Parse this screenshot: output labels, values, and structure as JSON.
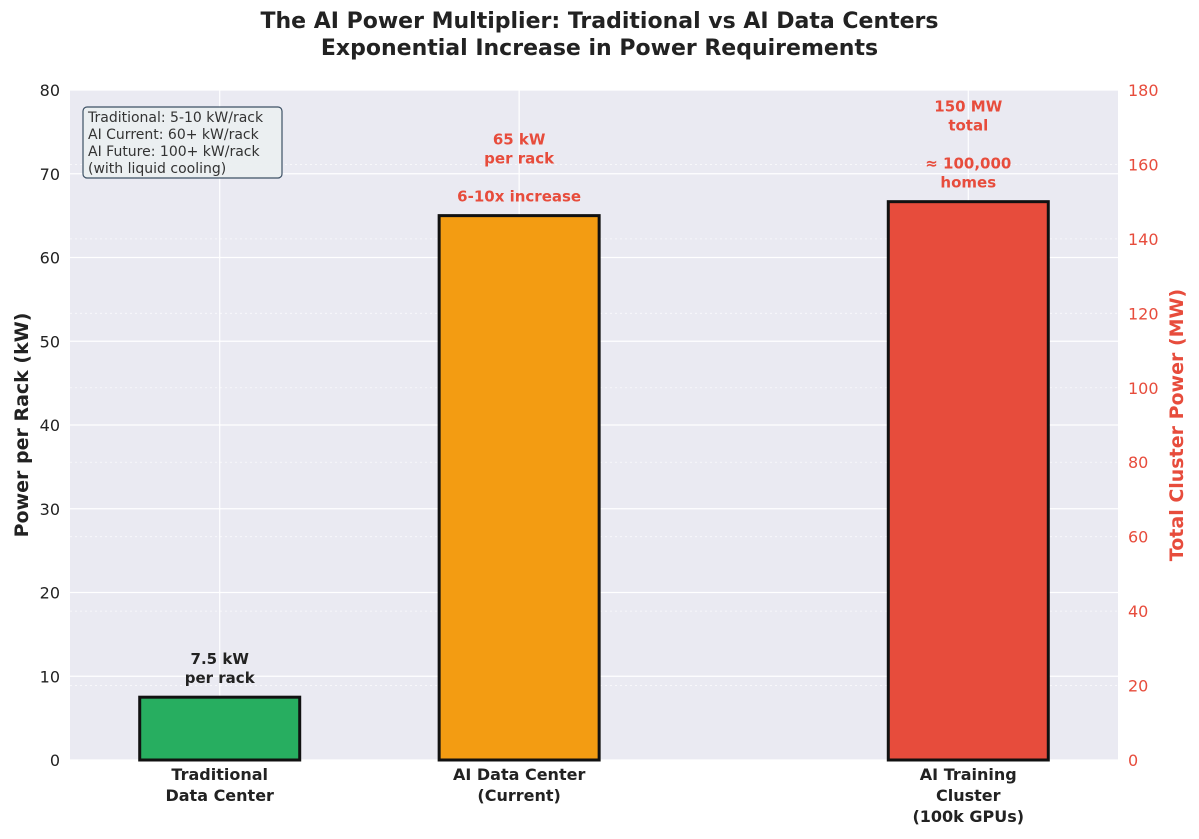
{
  "title": "The AI Power Multiplier: Traditional vs AI Data Centers",
  "subtitle": "Exponential Increase in Power Requirements",
  "colors": {
    "right_axis": "#e74c3c",
    "background": "#eaeaf2",
    "grid": "#ffffff"
  },
  "info_box": [
    "Traditional: 5-10 kW/rack",
    "AI Current: 60+ kW/rack",
    "AI Future: 100+ kW/rack",
    "(with liquid cooling)"
  ],
  "chart_data": {
    "type": "bar",
    "ylabel": "Power per Rack (kW)",
    "ylim": [
      0,
      80
    ],
    "yticks": [
      0,
      10,
      20,
      30,
      40,
      50,
      60,
      70,
      80
    ],
    "y2label": "Total Cluster Power (MW)",
    "y2lim": [
      0,
      180
    ],
    "y2ticks": [
      0,
      20,
      40,
      60,
      80,
      100,
      120,
      140,
      160,
      180
    ],
    "grid": true,
    "bars": [
      {
        "category": [
          "Traditional",
          "Data Center"
        ],
        "axis": "left",
        "value": 7.5,
        "color": "#27ae60",
        "x": 0,
        "annotation": [
          "7.5 kW",
          "per rack"
        ],
        "annotation_color": "#222222"
      },
      {
        "category": [
          "AI Data Center",
          "(Current)"
        ],
        "axis": "left",
        "value": 65,
        "color": "#f39c12",
        "x": 1,
        "annotation": [
          "65 kW",
          "per rack",
          "",
          "6-10x increase"
        ],
        "annotation_color": "#e74c3c"
      },
      {
        "category": [
          "AI Training",
          "Cluster",
          "(100k GPUs)"
        ],
        "axis": "right",
        "value": 150,
        "color": "#e74c3c",
        "x": 2.5,
        "annotation": [
          "150 MW",
          "total",
          "",
          "≈ 100,000",
          "homes"
        ],
        "annotation_color": "#e74c3c"
      }
    ]
  }
}
